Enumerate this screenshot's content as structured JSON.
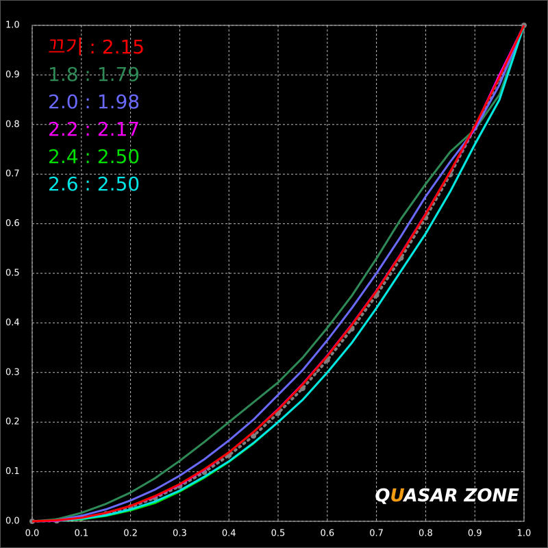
{
  "chart_data": {
    "type": "line",
    "x": [
      0,
      0.05,
      0.1,
      0.15,
      0.2,
      0.25,
      0.3,
      0.35,
      0.4,
      0.45,
      0.5,
      0.55,
      0.6,
      0.65,
      0.7,
      0.75,
      0.8,
      0.85,
      0.9,
      0.95,
      1
    ],
    "xlim": [
      0,
      1
    ],
    "ylim": [
      0,
      1
    ],
    "xticks": [
      {
        "value": 0,
        "label": "0.0"
      },
      0.1,
      0.2,
      0.3,
      0.4,
      0.5,
      0.6,
      0.7,
      0.8,
      0.9,
      {
        "value": 1,
        "label": "1.0"
      }
    ],
    "yticks": [
      {
        "value": 0,
        "label": "0.0"
      },
      0.1,
      0.2,
      0.3,
      0.4,
      0.5,
      0.6,
      0.7,
      0.8,
      0.9,
      {
        "value": 1,
        "label": "1.0"
      }
    ],
    "grid": true,
    "legend": "top-left",
    "reference": {
      "color": "#808080",
      "values": [
        0,
        0.001,
        0.006,
        0.015,
        0.029,
        0.047,
        0.071,
        0.099,
        0.133,
        0.172,
        0.218,
        0.268,
        0.325,
        0.388,
        0.456,
        0.531,
        0.612,
        0.699,
        0.793,
        0.893,
        1
      ]
    },
    "series": [
      {
        "name": "1.8 : 1.79",
        "color": "#2e8b57",
        "values": [
          0,
          0.004,
          0.017,
          0.035,
          0.058,
          0.087,
          0.122,
          0.16,
          0.2,
          0.24,
          0.28,
          0.33,
          0.39,
          0.455,
          0.53,
          0.61,
          0.68,
          0.745,
          0.79,
          0.86,
          1
        ]
      },
      {
        "name": "2.0 : 1.98",
        "color": "#6a6aff",
        "values": [
          0,
          0.002,
          0.011,
          0.024,
          0.042,
          0.064,
          0.092,
          0.125,
          0.163,
          0.205,
          0.255,
          0.305,
          0.365,
          0.43,
          0.5,
          0.575,
          0.655,
          0.725,
          0.79,
          0.88,
          1
        ]
      },
      {
        "name": "2.4 : 2.50",
        "color": "#00e000",
        "values": [
          0,
          0.001,
          0.004,
          0.011,
          0.022,
          0.037,
          0.06,
          0.088,
          0.12,
          0.157,
          0.2,
          0.245,
          0.3,
          0.36,
          0.43,
          0.505,
          0.58,
          0.665,
          0.76,
          0.85,
          1
        ]
      },
      {
        "name": "2.6 : 2.50",
        "color": "#00e5e5",
        "values": [
          0,
          0.001,
          0.005,
          0.012,
          0.024,
          0.04,
          0.062,
          0.09,
          0.121,
          0.158,
          0.2,
          0.245,
          0.3,
          0.36,
          0.43,
          0.505,
          0.58,
          0.665,
          0.76,
          0.85,
          1
        ]
      },
      {
        "name": "2.2 : 2.17",
        "color": "#ff00ff",
        "values": [
          0,
          0.001,
          0.007,
          0.017,
          0.031,
          0.05,
          0.074,
          0.104,
          0.139,
          0.18,
          0.226,
          0.277,
          0.334,
          0.397,
          0.465,
          0.54,
          0.62,
          0.705,
          0.795,
          0.9,
          1
        ]
      },
      {
        "name": "끄기 : 2.15",
        "color": "#ff0000",
        "values": [
          0,
          0.002,
          0.007,
          0.017,
          0.031,
          0.051,
          0.075,
          0.105,
          0.139,
          0.18,
          0.225,
          0.276,
          0.333,
          0.396,
          0.464,
          0.539,
          0.619,
          0.705,
          0.797,
          0.895,
          1
        ]
      }
    ],
    "legend_order": [
      5,
      0,
      1,
      4,
      2,
      3
    ],
    "watermark": {
      "first": "Q",
      "accent": "U",
      "rest": "ASAR ZONE"
    }
  }
}
